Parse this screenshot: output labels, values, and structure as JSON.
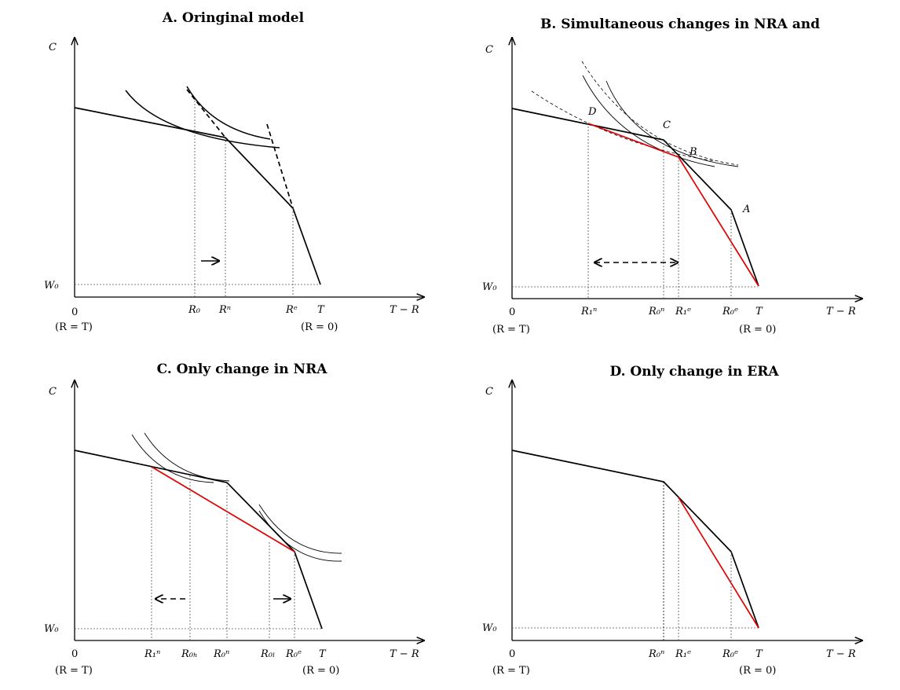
{
  "panels": {
    "a": {
      "title": "A. Oringinal model",
      "y_axis": "C",
      "w0": "W₀",
      "origin": "0",
      "origin_note": "(R = T)",
      "x_axis": "T − R",
      "ticks": {
        "r0": "R₀",
        "rn": "Rⁿ",
        "re": "Rᵉ",
        "t": "T"
      },
      "t_note": "(R = 0)"
    },
    "b": {
      "title": "B. Simultaneous changes in NRA and",
      "y_axis": "C",
      "w0": "W₀",
      "origin": "0",
      "origin_note": "(R = T)",
      "x_axis": "T − R",
      "ticks": {
        "r1n": "R₁ⁿ",
        "r0n": "R₀ⁿ",
        "r1e": "R₁ᵉ",
        "r0e": "R₀ᵉ",
        "t": "T"
      },
      "t_note": "(R = 0)",
      "points": {
        "a": "A",
        "b": "B",
        "c": "C",
        "d": "D"
      }
    },
    "c": {
      "title": "C. Only change in NRA",
      "y_axis": "C",
      "w0": "W₀",
      "origin": "0",
      "origin_note": "(R = T)",
      "x_axis": "T − R",
      "ticks": {
        "r1n": "R₁ⁿ",
        "r0h": "R₀ₕ",
        "r0n": "R₀ⁿ",
        "r0l": "R₀ₗ",
        "r0e": "R₀ᵉ",
        "t": "T"
      },
      "t_note": "(R = 0)"
    },
    "d": {
      "title": "D. Only change in ERA",
      "y_axis": "C",
      "w0": "W₀",
      "origin": "0",
      "origin_note": "(R = T)",
      "x_axis": "T − R",
      "ticks": {
        "r0n": "R₀ⁿ",
        "r1e": "R₁ᵉ",
        "r0e": "R₀ᵉ",
        "t": "T"
      },
      "t_note": "(R = 0)"
    }
  },
  "colors": {
    "line": "#000000",
    "new_budget": "#e00000"
  }
}
